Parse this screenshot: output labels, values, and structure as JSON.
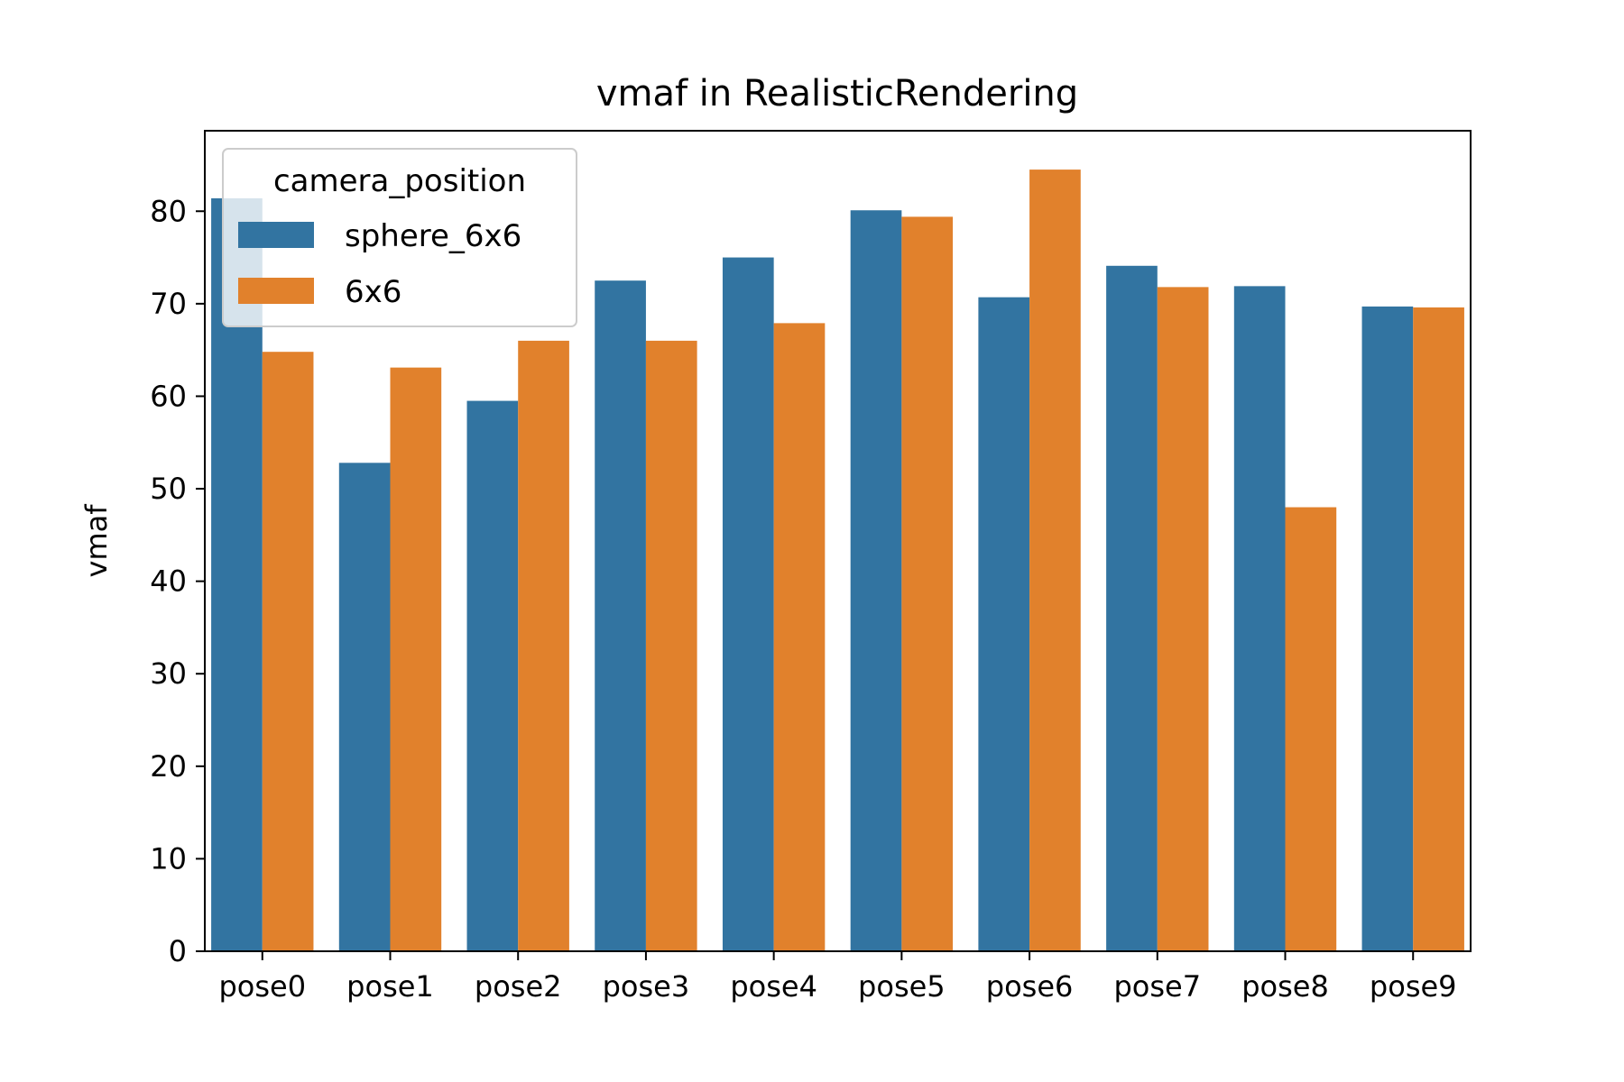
{
  "chart_data": {
    "type": "bar",
    "title": "vmaf in RealisticRendering",
    "xlabel": "",
    "ylabel": "vmaf",
    "categories": [
      "pose0",
      "pose1",
      "pose2",
      "pose3",
      "pose4",
      "pose5",
      "pose6",
      "pose7",
      "pose8",
      "pose9"
    ],
    "series": [
      {
        "name": "sphere_6x6",
        "color": "#3274a1",
        "values": [
          81.4,
          52.8,
          59.5,
          72.5,
          75.0,
          80.1,
          70.7,
          74.1,
          71.9,
          69.7
        ]
      },
      {
        "name": "6x6",
        "color": "#e1812c",
        "values": [
          64.8,
          63.1,
          66.0,
          66.0,
          67.9,
          79.4,
          84.5,
          71.8,
          48.0,
          69.6
        ]
      }
    ],
    "yticks": [
      "0",
      "10",
      "20",
      "30",
      "40",
      "50",
      "60",
      "70",
      "80"
    ],
    "ylim": [
      0,
      88.7
    ],
    "grid": false,
    "legend": {
      "title": "camera_position",
      "placement": "upper-left"
    }
  }
}
